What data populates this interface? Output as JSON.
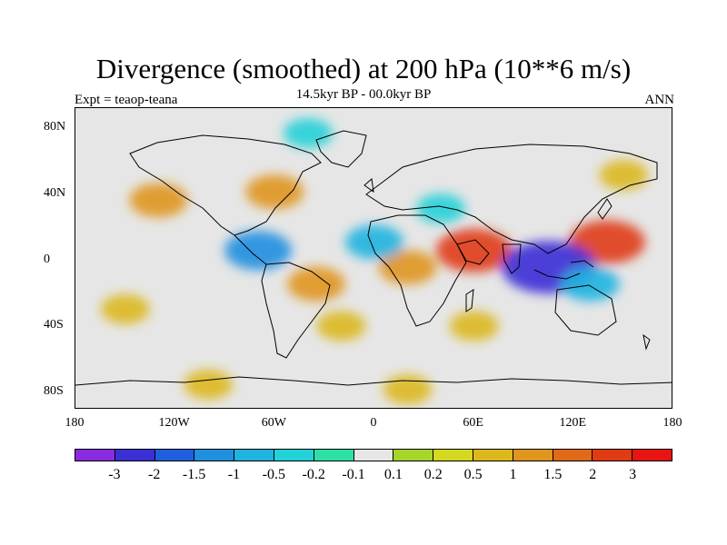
{
  "title": "Divergence (smoothed) at 200 hPa (10**6 m/s)",
  "experiment": "Expt = teaop-teana",
  "period": "14.5kyr BP - 00.0kyr BP",
  "season": "ANN",
  "lat_labels": [
    "80N",
    "40N",
    "0",
    "40S",
    "80S"
  ],
  "lon_labels": [
    "180",
    "120W",
    "60W",
    "0",
    "60E",
    "120E",
    "180"
  ],
  "colorbar": {
    "colors": [
      "#8a2be2",
      "#3b2fd6",
      "#1e5fe0",
      "#1f8fe0",
      "#1fb4e0",
      "#22d2d8",
      "#2fe0a6",
      "#e6e6e6",
      "#a6d62c",
      "#d4d81e",
      "#dcb81c",
      "#e0951c",
      "#e06a18",
      "#e03c14",
      "#e81414"
    ],
    "labels": [
      "-3",
      "-2",
      "-1.5",
      "-1",
      "-0.5",
      "-0.2",
      "-0.1",
      "0.1",
      "0.2",
      "0.5",
      "1",
      "1.5",
      "2",
      "3"
    ]
  },
  "chart_data": {
    "type": "heatmap",
    "variable": "Divergence (smoothed) at 200 hPa",
    "units": "10**6 m/s",
    "levels": [
      -3,
      -2,
      -1.5,
      -1,
      -0.5,
      -0.2,
      -0.1,
      0.1,
      0.2,
      0.5,
      1,
      1.5,
      2,
      3
    ],
    "x_range": [
      -180,
      180
    ],
    "y_range": [
      -90,
      90
    ],
    "anomalies": [
      {
        "lon": 60,
        "lat": 5,
        "value": 2
      },
      {
        "lon": 140,
        "lat": 10,
        "value": 2
      },
      {
        "lon": 105,
        "lat": -5,
        "value": -3
      },
      {
        "lon": -70,
        "lat": 5,
        "value": -1.5
      },
      {
        "lon": -130,
        "lat": 35,
        "value": 1
      },
      {
        "lon": -60,
        "lat": 40,
        "value": 1
      },
      {
        "lon": -35,
        "lat": -15,
        "value": 1
      },
      {
        "lon": 20,
        "lat": -5,
        "value": 1
      },
      {
        "lon": 0,
        "lat": 10,
        "value": -1
      },
      {
        "lon": 130,
        "lat": -15,
        "value": -1
      },
      {
        "lon": -150,
        "lat": -30,
        "value": 0.5
      },
      {
        "lon": 60,
        "lat": -40,
        "value": 0.5
      },
      {
        "lon": -20,
        "lat": -40,
        "value": 0.5
      },
      {
        "lon": -100,
        "lat": -75,
        "value": 0.5
      },
      {
        "lon": 20,
        "lat": -78,
        "value": 0.5
      },
      {
        "lon": 40,
        "lat": 30,
        "value": -0.5
      },
      {
        "lon": -40,
        "lat": 75,
        "value": -0.5
      },
      {
        "lon": 150,
        "lat": 50,
        "value": 0.5
      }
    ]
  }
}
